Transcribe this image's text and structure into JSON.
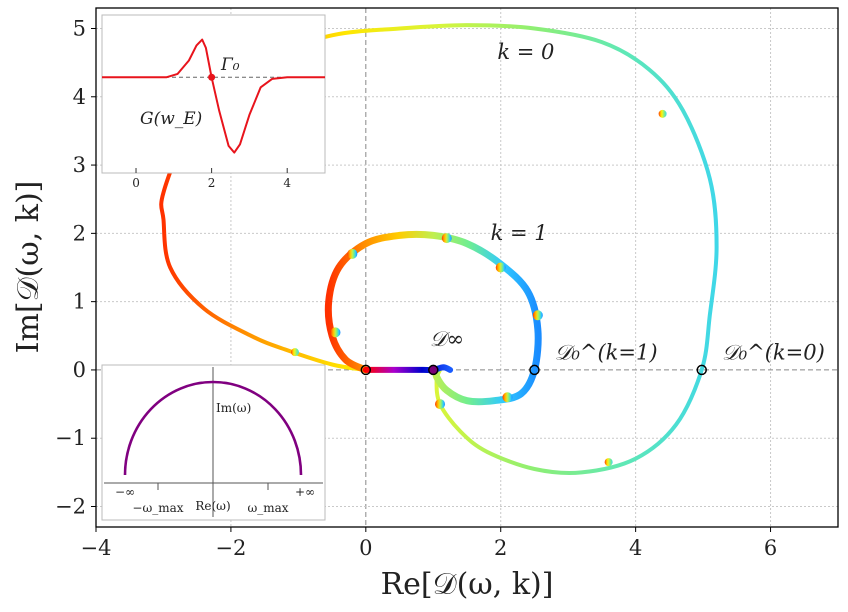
{
  "chart_data": {
    "type": "line",
    "xlabel": "Re[𝒟(ω, k)]",
    "ylabel": "Im[𝒟(ω, k)]",
    "xlim": [
      -4,
      7
    ],
    "ylim": [
      -2.3,
      5.3
    ],
    "xticks": [
      -4,
      -2,
      0,
      2,
      4,
      6
    ],
    "xtick_labels": [
      "−4",
      "−2",
      "0",
      "2",
      "4",
      "6"
    ],
    "yticks": [
      -2,
      -1,
      0,
      1,
      2,
      3,
      4,
      5
    ],
    "ytick_labels": [
      "−2",
      "−1",
      "0",
      "1",
      "2",
      "3",
      "4",
      "5"
    ],
    "grid": true,
    "series": [
      {
        "name": "k = 0",
        "color_by": "Re(ω)",
        "points": [
          [
            0.0,
            0.0
          ],
          [
            -0.5,
            0.08
          ],
          [
            -1.2,
            0.3
          ],
          [
            -1.7,
            0.5
          ],
          [
            -2.4,
            0.9
          ],
          [
            -2.9,
            1.5
          ],
          [
            -3.0,
            2.2
          ],
          [
            -3.0,
            2.6
          ],
          [
            -2.6,
            3.6
          ],
          [
            -2.2,
            4.1
          ],
          [
            -1.4,
            4.6
          ],
          [
            -0.5,
            4.9
          ],
          [
            0.5,
            5.0
          ],
          [
            1.5,
            5.05
          ],
          [
            2.5,
            5.0
          ],
          [
            3.5,
            4.8
          ],
          [
            4.2,
            4.4
          ],
          [
            4.7,
            3.8
          ],
          [
            5.1,
            2.8
          ],
          [
            5.2,
            1.8
          ],
          [
            5.1,
            0.8
          ],
          [
            4.98,
            0.0
          ],
          [
            4.6,
            -0.8
          ],
          [
            4.0,
            -1.3
          ],
          [
            3.2,
            -1.5
          ],
          [
            2.5,
            -1.45
          ],
          [
            1.8,
            -1.2
          ],
          [
            1.4,
            -0.9
          ],
          [
            1.1,
            -0.5
          ],
          [
            1.05,
            -0.15
          ],
          [
            1.1,
            0.0
          ]
        ],
        "arrows": [
          [
            -1.05,
            0.26
          ],
          [
            -1.75,
            3.85
          ],
          [
            4.4,
            3.75
          ],
          [
            3.6,
            -1.35
          ]
        ]
      },
      {
        "name": "k = 1",
        "color_by": "Re(ω)",
        "points": [
          [
            0.0,
            0.0
          ],
          [
            -0.3,
            0.15
          ],
          [
            -0.5,
            0.5
          ],
          [
            -0.55,
            1.0
          ],
          [
            -0.4,
            1.5
          ],
          [
            0.0,
            1.85
          ],
          [
            0.5,
            1.97
          ],
          [
            1.0,
            1.97
          ],
          [
            1.5,
            1.85
          ],
          [
            2.0,
            1.55
          ],
          [
            2.4,
            1.15
          ],
          [
            2.55,
            0.6
          ],
          [
            2.5,
            0.0
          ],
          [
            2.3,
            -0.35
          ],
          [
            1.9,
            -0.45
          ],
          [
            1.5,
            -0.45
          ],
          [
            1.2,
            -0.3
          ],
          [
            1.05,
            -0.1
          ],
          [
            1.05,
            0.0
          ]
        ],
        "arrows": [
          [
            -0.45,
            0.55
          ],
          [
            -0.2,
            1.7
          ],
          [
            1.2,
            1.93
          ],
          [
            2.0,
            1.5
          ],
          [
            2.55,
            0.8
          ],
          [
            2.1,
            -0.4
          ],
          [
            1.1,
            -0.5
          ]
        ]
      },
      {
        "name": "𝒟∞",
        "color_by": "Re(ω)",
        "points": [
          [
            0.0,
            0.0
          ],
          [
            0.3,
            0.0
          ],
          [
            0.6,
            0.0
          ],
          [
            0.85,
            0.0
          ],
          [
            1.0,
            0.0
          ],
          [
            1.15,
            0.04
          ],
          [
            1.25,
            0.0
          ]
        ]
      }
    ],
    "points": [
      {
        "label": "",
        "x": 0.0,
        "y": 0.0
      },
      {
        "label": "",
        "x": 1.0,
        "y": 0.0
      },
      {
        "label": "𝒟₀^(k=1)",
        "x": 2.5,
        "y": 0.0
      },
      {
        "label": "𝒟₀^(k=0)",
        "x": 4.98,
        "y": 0.0
      }
    ],
    "annotations": [
      {
        "text": "k = 0",
        "x": 1.95,
        "y": 4.55
      },
      {
        "text": "k = 1",
        "x": 1.85,
        "y": 1.9
      },
      {
        "text": "𝒟∞",
        "x": 0.95,
        "y": 0.35
      }
    ],
    "inset_top": {
      "type": "line",
      "label": "G(w_E)",
      "marker_label": "Γ₀",
      "xticks": [
        0,
        2,
        4
      ],
      "xtick_labels": [
        "0",
        "2",
        "4"
      ],
      "xlim": [
        -0.9,
        5.0
      ],
      "ylim": [
        -1.0,
        0.6
      ],
      "color": "#e8141c",
      "marker": [
        2.0,
        0.0
      ],
      "points": [
        [
          -0.9,
          0
        ],
        [
          0.8,
          0
        ],
        [
          1.1,
          0.04
        ],
        [
          1.4,
          0.2
        ],
        [
          1.6,
          0.38
        ],
        [
          1.75,
          0.45
        ],
        [
          1.85,
          0.35
        ],
        [
          2.0,
          0.0
        ],
        [
          2.2,
          -0.4
        ],
        [
          2.45,
          -0.82
        ],
        [
          2.6,
          -0.9
        ],
        [
          2.75,
          -0.8
        ],
        [
          3.0,
          -0.45
        ],
        [
          3.3,
          -0.12
        ],
        [
          3.6,
          -0.02
        ],
        [
          4.0,
          0
        ],
        [
          5.0,
          0
        ]
      ]
    },
    "inset_bottom": {
      "type": "line",
      "path": "semicircle",
      "labels": [
        "Im(ω)",
        "Re(ω)"
      ],
      "tick_labels": [
        "−∞",
        "−ω_max",
        "ω_max",
        "+∞"
      ],
      "arc_color": "#800080"
    },
    "colors": {
      "k0": [
        "#ff3000",
        "#ff9900",
        "#ffe600",
        "#d8f53b",
        "#8fef72",
        "#5fe8b6",
        "#3fd7e8"
      ],
      "k1": [
        "#ff3000",
        "#ff8c00",
        "#ffcc00",
        "#c0ef50",
        "#70ee90",
        "#30c9ff",
        "#1a8cff"
      ],
      "dinf": [
        "#ff0000",
        "#aa00cc",
        "#0000cc",
        "#1a5cff"
      ],
      "spectrum": [
        "#ff0000",
        "#ff8800",
        "#ffee00",
        "#33ee33",
        "#00aaff",
        "#1e1ed0",
        "#8800aa"
      ]
    }
  }
}
